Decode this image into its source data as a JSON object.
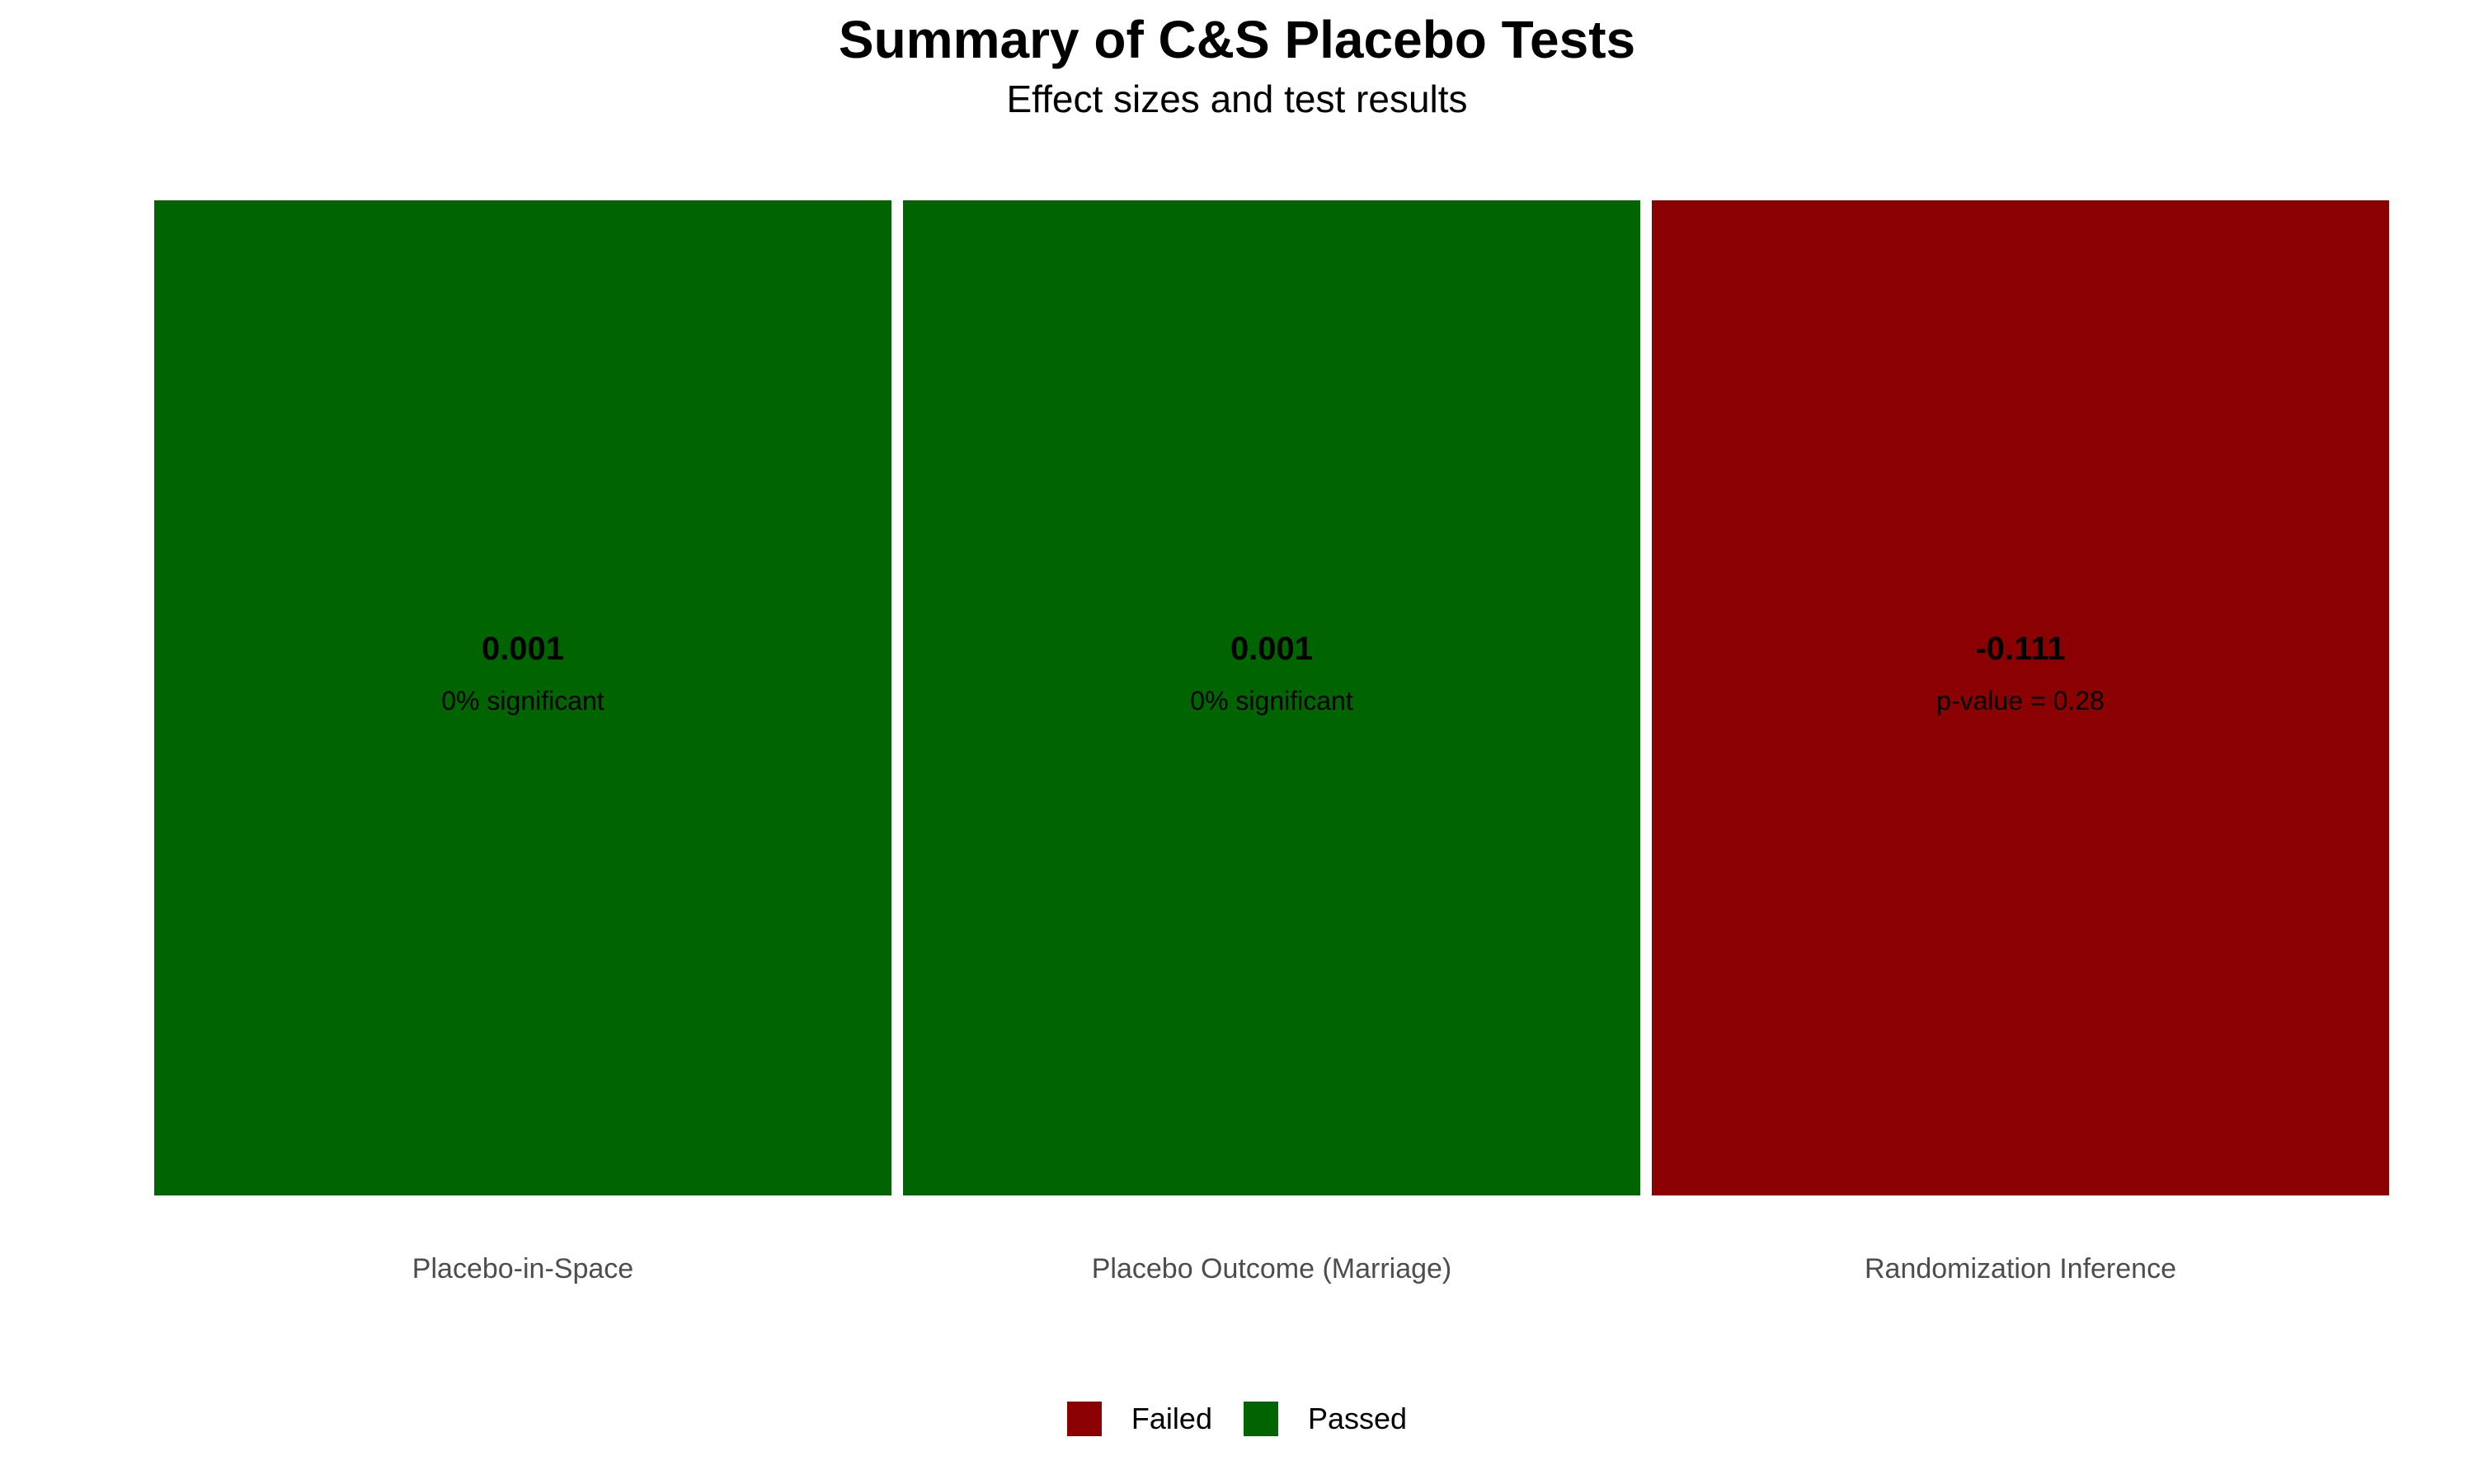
{
  "chart_data": {
    "type": "heatmap",
    "title": "Summary of C&S Placebo Tests",
    "subtitle": "Effect sizes and test results",
    "categories": [
      "Placebo-in-Space",
      "Placebo Outcome (Marriage)",
      "Randomization Inference"
    ],
    "tiles": [
      {
        "category": "Placebo-in-Space",
        "effect": "0.001",
        "detail": "0% significant",
        "result": "Passed"
      },
      {
        "category": "Placebo Outcome (Marriage)",
        "effect": "0.001",
        "detail": "0% significant",
        "result": "Passed"
      },
      {
        "category": "Randomization Inference",
        "effect": "-0.111",
        "detail": "p-value = 0.28",
        "result": "Failed"
      }
    ],
    "legend": {
      "position": "bottom",
      "entries": [
        {
          "label": "Failed",
          "color": "#8B0000"
        },
        {
          "label": "Passed",
          "color": "#006400"
        }
      ]
    },
    "grid": false
  }
}
